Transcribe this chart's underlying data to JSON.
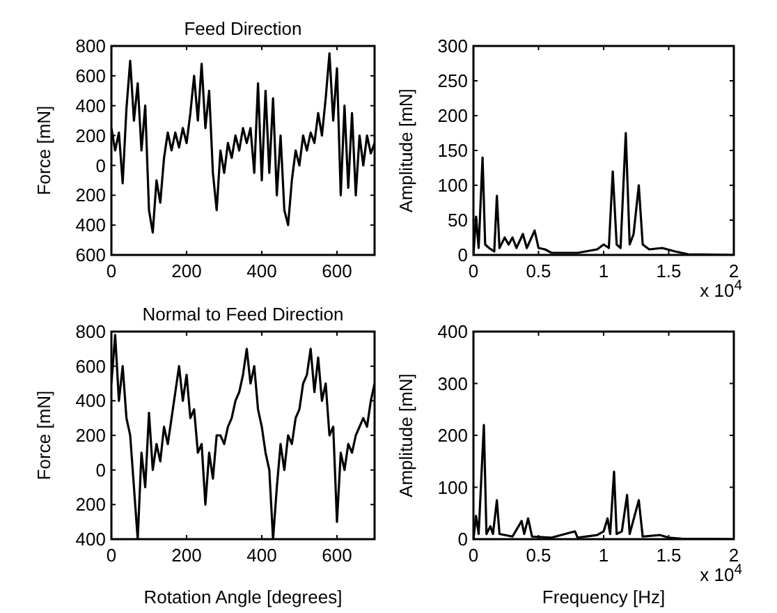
{
  "chart_data": [
    {
      "type": "line",
      "title": "Feed Direction",
      "ylabel": "Force [mN]",
      "xlim": [
        0,
        700
      ],
      "xticks": [
        0,
        200,
        400,
        600
      ],
      "ylim": [
        -600,
        800
      ],
      "yticks": [
        800,
        600,
        400,
        200,
        0,
        {
          "value": -200,
          "label": "200"
        },
        {
          "value": -400,
          "label": "400"
        },
        {
          "value": -600,
          "label": "600"
        }
      ],
      "grid": false,
      "marker": "none",
      "line_style": "solid",
      "series": [
        {
          "color": "#000000",
          "x": [
            0,
            10,
            20,
            30,
            40,
            50,
            60,
            70,
            80,
            90,
            100,
            110,
            120,
            130,
            140,
            150,
            160,
            170,
            180,
            190,
            200,
            210,
            220,
            230,
            240,
            250,
            260,
            270,
            280,
            290,
            300,
            310,
            320,
            330,
            340,
            350,
            360,
            370,
            380,
            390,
            400,
            410,
            420,
            430,
            440,
            450,
            460,
            470,
            480,
            490,
            500,
            510,
            520,
            530,
            540,
            550,
            560,
            570,
            580,
            590,
            600,
            610,
            620,
            630,
            640,
            650,
            660,
            670,
            680,
            690,
            700
          ],
          "values": [
            250,
            100,
            220,
            -120,
            380,
            700,
            300,
            550,
            100,
            400,
            -300,
            -450,
            -100,
            -250,
            50,
            220,
            100,
            220,
            120,
            250,
            150,
            350,
            600,
            300,
            680,
            250,
            500,
            -50,
            -300,
            100,
            -50,
            150,
            50,
            200,
            100,
            250,
            150,
            250,
            -50,
            550,
            -100,
            500,
            -50,
            450,
            -200,
            200,
            -300,
            -400,
            -100,
            100,
            0,
            200,
            100,
            220,
            150,
            350,
            200,
            450,
            750,
            300,
            650,
            -200,
            400,
            -150,
            350,
            -200,
            200,
            0,
            200,
            80,
            150
          ]
        }
      ]
    },
    {
      "type": "line",
      "ylabel": "Amplitude [mN]",
      "xlim": [
        0,
        2
      ],
      "xticks": [
        0,
        0.5,
        1,
        1.5,
        2
      ],
      "ylim": [
        0,
        300
      ],
      "yticks": [
        0,
        50,
        100,
        150,
        200,
        250,
        300
      ],
      "grid": false,
      "marker": "none",
      "line_style": "solid",
      "annotations": [
        "x 10$^{4}$"
      ],
      "series": [
        {
          "color": "#000000",
          "x": [
            0,
            0.02,
            0.04,
            0.07,
            0.09,
            0.12,
            0.16,
            0.18,
            0.2,
            0.24,
            0.27,
            0.3,
            0.33,
            0.38,
            0.41,
            0.47,
            0.5,
            0.55,
            0.6,
            0.8,
            0.95,
            1.0,
            1.04,
            1.07,
            1.1,
            1.13,
            1.17,
            1.2,
            1.23,
            1.27,
            1.3,
            1.35,
            1.45,
            1.55,
            1.65,
            2.0
          ],
          "values": [
            0,
            55,
            10,
            140,
            15,
            10,
            5,
            85,
            10,
            25,
            15,
            25,
            10,
            30,
            10,
            35,
            10,
            8,
            3,
            3,
            8,
            15,
            10,
            120,
            15,
            10,
            175,
            15,
            30,
            100,
            15,
            8,
            10,
            5,
            1,
            0
          ]
        }
      ]
    },
    {
      "type": "line",
      "title": "Normal to Feed Direction",
      "xlabel": "Rotation Angle [degrees]",
      "ylabel": "Force [mN]",
      "xlim": [
        0,
        700
      ],
      "xticks": [
        0,
        200,
        400,
        600
      ],
      "ylim": [
        -400,
        800
      ],
      "yticks": [
        800,
        600,
        400,
        200,
        0,
        {
          "value": -200,
          "label": "200"
        },
        {
          "value": -400,
          "label": "400"
        }
      ],
      "grid": false,
      "marker": "none",
      "line_style": "solid",
      "series": [
        {
          "color": "#000000",
          "x": [
            0,
            10,
            20,
            30,
            40,
            50,
            60,
            70,
            80,
            90,
            100,
            110,
            120,
            130,
            140,
            150,
            160,
            170,
            180,
            190,
            200,
            210,
            220,
            230,
            240,
            250,
            260,
            270,
            280,
            290,
            300,
            310,
            320,
            330,
            340,
            350,
            360,
            370,
            380,
            390,
            400,
            410,
            420,
            430,
            440,
            450,
            460,
            470,
            480,
            490,
            500,
            510,
            520,
            530,
            540,
            550,
            560,
            570,
            580,
            590,
            600,
            610,
            620,
            630,
            640,
            650,
            660,
            670,
            680,
            690,
            700
          ],
          "values": [
            500,
            780,
            400,
            600,
            300,
            200,
            -100,
            -400,
            100,
            -100,
            330,
            0,
            150,
            50,
            250,
            150,
            300,
            450,
            600,
            400,
            550,
            300,
            350,
            100,
            150,
            -200,
            100,
            -50,
            200,
            200,
            150,
            250,
            300,
            400,
            450,
            550,
            700,
            500,
            600,
            350,
            250,
            100,
            0,
            -400,
            -100,
            150,
            0,
            200,
            150,
            300,
            350,
            500,
            550,
            700,
            450,
            650,
            400,
            500,
            200,
            250,
            -300,
            100,
            0,
            150,
            100,
            200,
            250,
            300,
            250,
            400,
            500
          ]
        }
      ]
    },
    {
      "type": "line",
      "xlabel": "Frequency [Hz]",
      "ylabel": "Amplitude [mN]",
      "xlim": [
        0,
        2
      ],
      "xticks": [
        0,
        0.5,
        1,
        1.5,
        2
      ],
      "ylim": [
        0,
        400
      ],
      "yticks": [
        0,
        100,
        200,
        300,
        400
      ],
      "grid": false,
      "marker": "none",
      "line_style": "solid",
      "annotations": [
        "x 10$^{4}$"
      ],
      "series": [
        {
          "color": "#000000",
          "x": [
            0,
            0.02,
            0.04,
            0.08,
            0.1,
            0.13,
            0.15,
            0.18,
            0.2,
            0.3,
            0.37,
            0.39,
            0.42,
            0.45,
            0.6,
            0.78,
            0.8,
            0.95,
            1.0,
            1.03,
            1.05,
            1.08,
            1.1,
            1.14,
            1.18,
            1.2,
            1.27,
            1.3,
            1.43,
            1.5,
            1.6,
            2.0
          ],
          "values": [
            0,
            45,
            10,
            220,
            10,
            25,
            10,
            75,
            10,
            5,
            35,
            10,
            40,
            5,
            3,
            15,
            3,
            8,
            15,
            40,
            10,
            130,
            10,
            15,
            85,
            10,
            75,
            5,
            8,
            3,
            1,
            0
          ]
        }
      ]
    }
  ]
}
